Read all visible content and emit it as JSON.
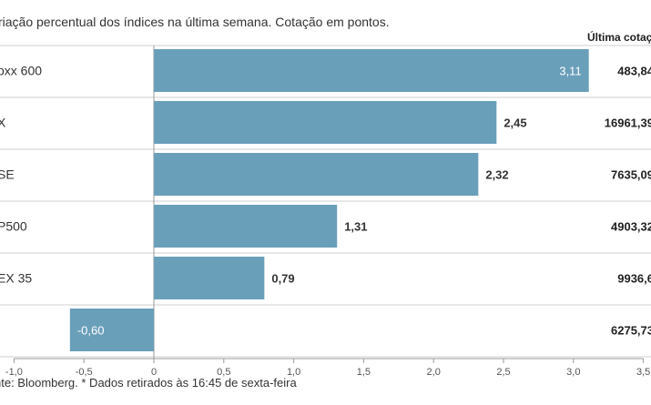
{
  "subtitle": "riação percentual dos índices na última semana. Cotação em pontos.",
  "source": "nte: Bloomberg.  * Dados retirados às 16:45 de sexta-feira",
  "chart_data": {
    "type": "bar",
    "orientation": "horizontal",
    "categories": [
      "oxx 600",
      "X",
      "SE",
      "P500",
      "EX 35",
      ""
    ],
    "values": [
      3.11,
      2.45,
      2.32,
      1.31,
      0.79,
      -0.6
    ],
    "value_labels": [
      "3,11",
      "2,45",
      "2,32",
      "1,31",
      "0,79",
      "-0,60"
    ],
    "price_header": "Última cotaç",
    "prices": [
      "483,84",
      "16961,39",
      "7635,09",
      "4903,32",
      "9936,6",
      "6275,73"
    ],
    "xlim": [
      -1.0,
      3.5
    ],
    "xticks": [
      -1.0,
      -0.5,
      0,
      0.5,
      1.0,
      1.5,
      2.0,
      2.5,
      3.0,
      3.5
    ],
    "xtick_labels": [
      "-1,0",
      "-0,5",
      "0",
      "0,5",
      "1,0",
      "1,5",
      "2,0",
      "2,5",
      "3,0",
      "3,5"
    ],
    "bar_color": "#6a9fba",
    "grid": false
  }
}
